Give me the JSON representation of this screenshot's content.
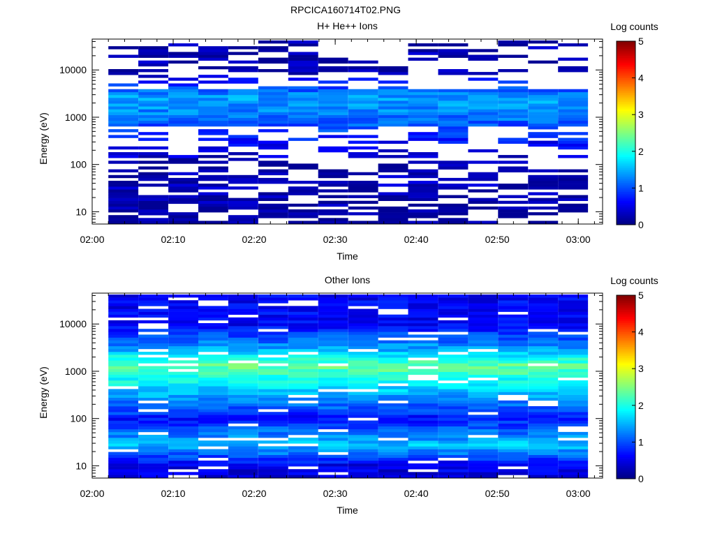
{
  "figure_title": "RPCICA160714T02.PNG",
  "chart_data": [
    {
      "type": "heatmap",
      "title": "H+ He++ Ions",
      "xlabel": "Time",
      "ylabel": "Energy (eV)",
      "x_ticks": [
        "02:00",
        "02:10",
        "02:20",
        "02:30",
        "02:40",
        "02:50",
        "03:00"
      ],
      "x_range": [
        "02:00",
        "03:03"
      ],
      "y_scale": "log",
      "y_ticks": [
        "10",
        "100",
        "1000",
        "10000"
      ],
      "y_range": [
        5.5,
        45000
      ],
      "colorbar_label": "Log counts",
      "colorbar_ticks": [
        "0",
        "1",
        "2",
        "3",
        "4",
        "5"
      ],
      "colorbar_range": [
        0,
        5
      ],
      "colormap": "jet",
      "mean_spectrum": [
        {
          "energy_ev": 10,
          "log_counts": 0.1
        },
        {
          "energy_ev": 30,
          "log_counts": 0.3
        },
        {
          "energy_ev": 100,
          "log_counts": 0.2
        },
        {
          "energy_ev": 1300,
          "log_counts": 1.3
        },
        {
          "energy_ev": 2700,
          "log_counts": 1.4
        },
        {
          "energy_ev": 10000,
          "log_counts": 0.2
        }
      ],
      "sparse": true
    },
    {
      "type": "heatmap",
      "title": "Other Ions",
      "xlabel": "Time",
      "ylabel": "Energy (eV)",
      "x_ticks": [
        "02:00",
        "02:10",
        "02:20",
        "02:30",
        "02:40",
        "02:50",
        "03:00"
      ],
      "x_range": [
        "02:00",
        "03:03"
      ],
      "y_scale": "log",
      "y_ticks": [
        "10",
        "100",
        "1000",
        "10000"
      ],
      "y_range": [
        5.5,
        45000
      ],
      "colorbar_label": "Log counts",
      "colorbar_ticks": [
        "0",
        "1",
        "2",
        "3",
        "4",
        "5"
      ],
      "colorbar_range": [
        0,
        5
      ],
      "colormap": "jet",
      "mean_spectrum": [
        {
          "energy_ev": 10,
          "log_counts": 0.5
        },
        {
          "energy_ev": 28,
          "log_counts": 1.6
        },
        {
          "energy_ev": 100,
          "log_counts": 0.7
        },
        {
          "energy_ev": 1300,
          "log_counts": 2.4
        },
        {
          "energy_ev": 2700,
          "log_counts": 1.5
        },
        {
          "energy_ev": 10000,
          "log_counts": 0.6
        }
      ],
      "sparse": false
    }
  ]
}
